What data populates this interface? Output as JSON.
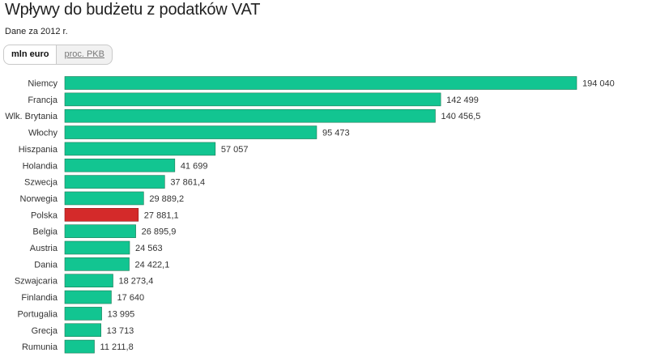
{
  "header": {
    "title": "Wpływy do budżetu z podatków VAT",
    "subtitle": "Dane za 2012 r."
  },
  "toggle": {
    "options": [
      {
        "label": "mln euro",
        "active": true
      },
      {
        "label": "proc. PKB",
        "active": false
      }
    ]
  },
  "colors": {
    "bar": "#12c591",
    "highlight": "#d42a2a"
  },
  "chart_data": {
    "type": "bar",
    "orientation": "horizontal",
    "title": "Wpływy do budżetu z podatków VAT",
    "subtitle": "Dane za 2012 r.",
    "unit": "mln euro",
    "highlight": "Polska",
    "grid": false,
    "categories": [
      "Niemcy",
      "Francja",
      "Wlk. Brytania",
      "Włochy",
      "Hiszpania",
      "Holandia",
      "Szwecja",
      "Norwegia",
      "Polska",
      "Belgia",
      "Austria",
      "Dania",
      "Szwajcaria",
      "Finlandia",
      "Portugalia",
      "Grecja",
      "Rumunia"
    ],
    "values": [
      194040,
      142499,
      140456.5,
      95473,
      57057,
      41699,
      37861.4,
      29889.2,
      27881.1,
      26895.9,
      24563,
      24422.1,
      18273.4,
      17640,
      13995,
      13713,
      11211.8
    ],
    "value_labels": [
      "194 040",
      "142 499",
      "140 456,5",
      "95 473",
      "57 057",
      "41 699",
      "37 861,4",
      "29 889,2",
      "27 881,1",
      "26 895,9",
      "24 563",
      "24 422,1",
      "18 273,4",
      "17 640",
      "13 995",
      "13 713",
      "11 211,8"
    ]
  }
}
